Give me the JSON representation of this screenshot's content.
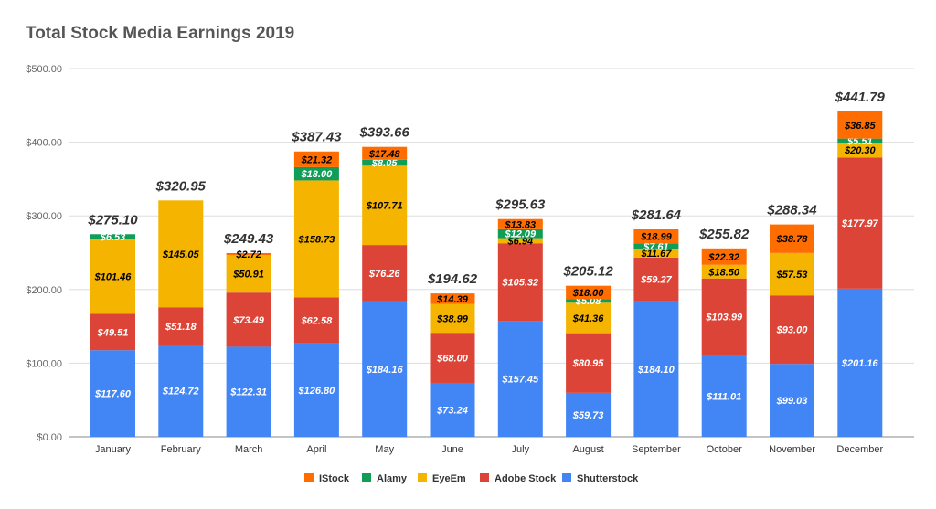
{
  "chart_data": {
    "type": "bar",
    "stacked": true,
    "title": "Total Stock Media Earnings 2019",
    "xlabel": "",
    "ylabel": "",
    "ylim": [
      0,
      500
    ],
    "yticks": [
      "$0.00",
      "$100.00",
      "$200.00",
      "$300.00",
      "$400.00",
      "$500.00"
    ],
    "grid": true,
    "legend_position": "bottom",
    "categories": [
      "January",
      "February",
      "March",
      "April",
      "May",
      "June",
      "July",
      "August",
      "September",
      "October",
      "November",
      "December"
    ],
    "series": [
      {
        "name": "Shutterstock",
        "color": "#4285f4",
        "label_color": "#ffffff",
        "values": [
          117.6,
          124.72,
          122.31,
          126.8,
          184.16,
          73.24,
          157.45,
          59.73,
          184.1,
          111.01,
          99.03,
          201.16
        ],
        "labels": [
          "$117.60",
          "$124.72",
          "$122.31",
          "$126.80",
          "$184.16",
          "$73.24",
          "$157.45",
          "$59.73",
          "$184.10",
          "$111.01",
          "$99.03",
          "$201.16"
        ]
      },
      {
        "name": "Adobe Stock",
        "color": "#db4437",
        "label_color": "#ffffff",
        "values": [
          49.51,
          51.18,
          73.49,
          62.58,
          76.26,
          68.0,
          105.32,
          80.95,
          59.27,
          103.99,
          93.0,
          177.97
        ],
        "labels": [
          "$49.51",
          "$51.18",
          "$73.49",
          "$62.58",
          "$76.26",
          "$68.00",
          "$105.32",
          "$80.95",
          "$59.27",
          "$103.99",
          "$93.00",
          "$177.97"
        ]
      },
      {
        "name": "EyeEm",
        "color": "#f4b400",
        "label_color": "#000000",
        "values": [
          101.46,
          145.05,
          50.91,
          158.73,
          107.71,
          38.99,
          6.94,
          41.36,
          11.67,
          18.5,
          57.53,
          20.3
        ],
        "labels": [
          "$101.46",
          "$145.05",
          "$50.91",
          "$158.73",
          "$107.71",
          "$38.99",
          "$6.94",
          "$41.36",
          "$11.67",
          "$18.50",
          "$57.53",
          "$20.30"
        ]
      },
      {
        "name": "Alamy",
        "color": "#0f9d58",
        "label_color": "#ffffff",
        "values": [
          6.53,
          0,
          0,
          18.0,
          8.05,
          0,
          12.09,
          5.08,
          7.61,
          0,
          0,
          5.51
        ],
        "labels": [
          "$6.53",
          "",
          "",
          "$18.00",
          "$8.05",
          "",
          "$12.09",
          "$5.08",
          "$7.61",
          "",
          "",
          "$5.51"
        ]
      },
      {
        "name": "IStock",
        "color": "#ff6d00",
        "label_color": "#000000",
        "values": [
          0,
          0,
          2.72,
          21.32,
          17.48,
          14.39,
          13.83,
          18.0,
          18.99,
          22.32,
          38.78,
          36.85
        ],
        "labels": [
          "",
          "",
          "$2.72",
          "$21.32",
          "$17.48",
          "$14.39",
          "$13.83",
          "$18.00",
          "$18.99",
          "$22.32",
          "$38.78",
          "$36.85"
        ]
      }
    ],
    "totals": [
      "$275.10",
      "$320.95",
      "$249.43",
      "$387.43",
      "$393.66",
      "$194.62",
      "$295.63",
      "$205.12",
      "$281.64",
      "$255.82",
      "$288.34",
      "$441.79"
    ],
    "legend_order": [
      "IStock",
      "Alamy",
      "EyeEm",
      "Adobe Stock",
      "Shutterstock"
    ]
  }
}
